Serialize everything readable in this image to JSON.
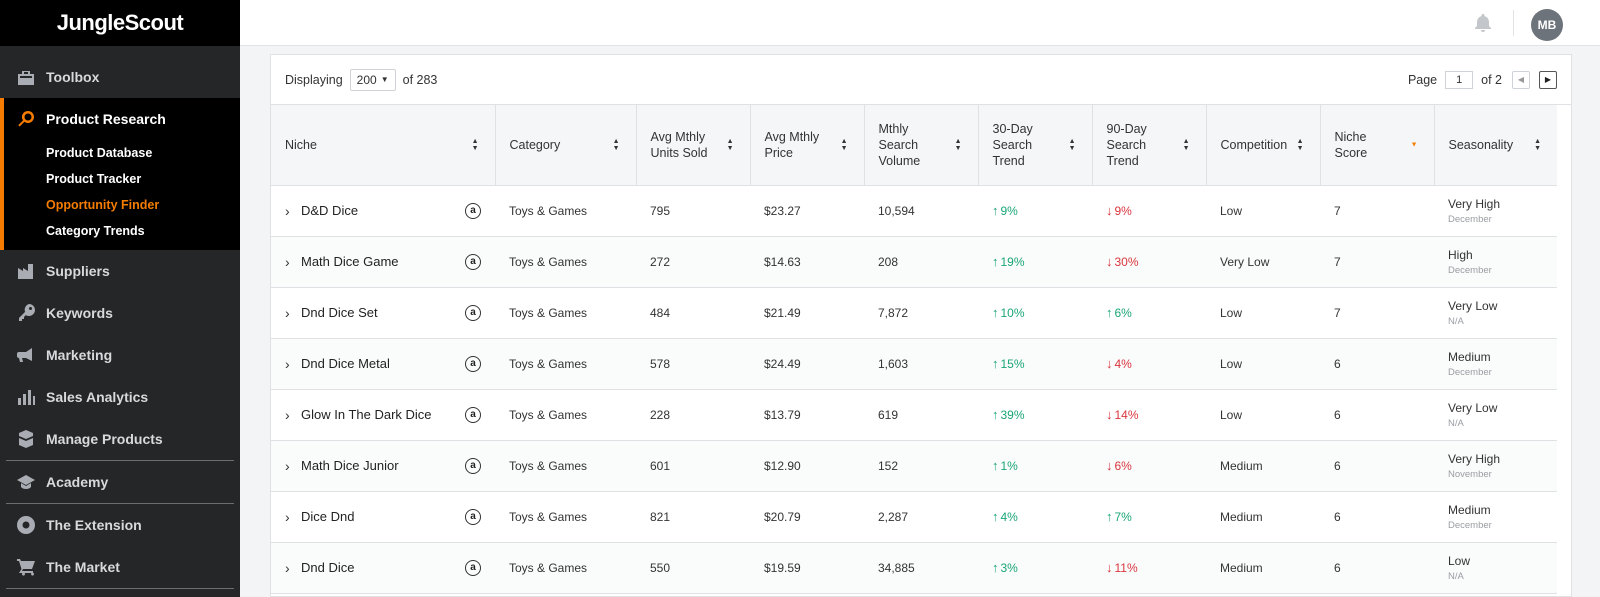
{
  "app": {
    "logo": "JungleScout"
  },
  "sidebar": {
    "items": [
      {
        "label": "Toolbox",
        "icon": "toolbox-icon"
      },
      {
        "label": "Product Research",
        "icon": "search-icon"
      },
      {
        "label": "Suppliers",
        "icon": "factory-icon"
      },
      {
        "label": "Keywords",
        "icon": "key-icon"
      },
      {
        "label": "Marketing",
        "icon": "megaphone-icon"
      },
      {
        "label": "Sales Analytics",
        "icon": "bar-chart-icon"
      },
      {
        "label": "Manage Products",
        "icon": "box-icon"
      },
      {
        "label": "Academy",
        "icon": "graduation-cap-icon"
      },
      {
        "label": "The Extension",
        "icon": "chrome-icon"
      },
      {
        "label": "The Market",
        "icon": "cart-icon"
      }
    ],
    "sub_items": [
      {
        "label": "Product Database"
      },
      {
        "label": "Product Tracker"
      },
      {
        "label": "Opportunity Finder"
      },
      {
        "label": "Category Trends"
      }
    ]
  },
  "topbar": {
    "avatar_initials": "MB"
  },
  "pagination": {
    "displaying_label": "Displaying",
    "per_page": "200",
    "of_total": "of 283",
    "page_label": "Page",
    "page_value": "1",
    "of_pages": "of 2"
  },
  "table": {
    "columns": [
      "Niche",
      "Category",
      "Avg Mthly Units Sold",
      "Avg Mthly Price",
      "Mthly Search Volume",
      "30-Day Search Trend",
      "90-Day Search Trend",
      "Competition",
      "Niche Score",
      "Seasonality"
    ],
    "rows": [
      {
        "niche": "D&D Dice",
        "category": "Toys & Games",
        "units": "795",
        "price": "$23.27",
        "volume": "10,594",
        "t30": "9%",
        "t30_dir": "up",
        "t90": "9%",
        "t90_dir": "down",
        "competition": "Low",
        "score": "7",
        "season": "Very High",
        "season_sub": "December"
      },
      {
        "niche": "Math Dice Game",
        "category": "Toys & Games",
        "units": "272",
        "price": "$14.63",
        "volume": "208",
        "t30": "19%",
        "t30_dir": "up",
        "t90": "30%",
        "t90_dir": "down",
        "competition": "Very Low",
        "score": "7",
        "season": "High",
        "season_sub": "December"
      },
      {
        "niche": "Dnd Dice Set",
        "category": "Toys & Games",
        "units": "484",
        "price": "$21.49",
        "volume": "7,872",
        "t30": "10%",
        "t30_dir": "up",
        "t90": "6%",
        "t90_dir": "up",
        "competition": "Low",
        "score": "7",
        "season": "Very Low",
        "season_sub": "N/A"
      },
      {
        "niche": "Dnd Dice Metal",
        "category": "Toys & Games",
        "units": "578",
        "price": "$24.49",
        "volume": "1,603",
        "t30": "15%",
        "t30_dir": "up",
        "t90": "4%",
        "t90_dir": "down",
        "competition": "Low",
        "score": "6",
        "season": "Medium",
        "season_sub": "December"
      },
      {
        "niche": "Glow In The Dark Dice",
        "category": "Toys & Games",
        "units": "228",
        "price": "$13.79",
        "volume": "619",
        "t30": "39%",
        "t30_dir": "up",
        "t90": "14%",
        "t90_dir": "down",
        "competition": "Low",
        "score": "6",
        "season": "Very Low",
        "season_sub": "N/A"
      },
      {
        "niche": "Math Dice Junior",
        "category": "Toys & Games",
        "units": "601",
        "price": "$12.90",
        "volume": "152",
        "t30": "1%",
        "t30_dir": "up",
        "t90": "6%",
        "t90_dir": "down",
        "competition": "Medium",
        "score": "6",
        "season": "Very High",
        "season_sub": "November"
      },
      {
        "niche": "Dice Dnd",
        "category": "Toys & Games",
        "units": "821",
        "price": "$20.79",
        "volume": "2,287",
        "t30": "4%",
        "t30_dir": "up",
        "t90": "7%",
        "t90_dir": "up",
        "competition": "Medium",
        "score": "6",
        "season": "Medium",
        "season_sub": "December"
      },
      {
        "niche": "Dnd Dice",
        "category": "Toys & Games",
        "units": "550",
        "price": "$19.59",
        "volume": "34,885",
        "t30": "3%",
        "t30_dir": "up",
        "t90": "11%",
        "t90_dir": "down",
        "competition": "Medium",
        "score": "6",
        "season": "Low",
        "season_sub": "N/A"
      }
    ]
  },
  "colors": {
    "accent": "#f57c00",
    "trend_up": "#1aa577",
    "trend_down": "#d9363e",
    "sidebar_bg": "#252628"
  }
}
